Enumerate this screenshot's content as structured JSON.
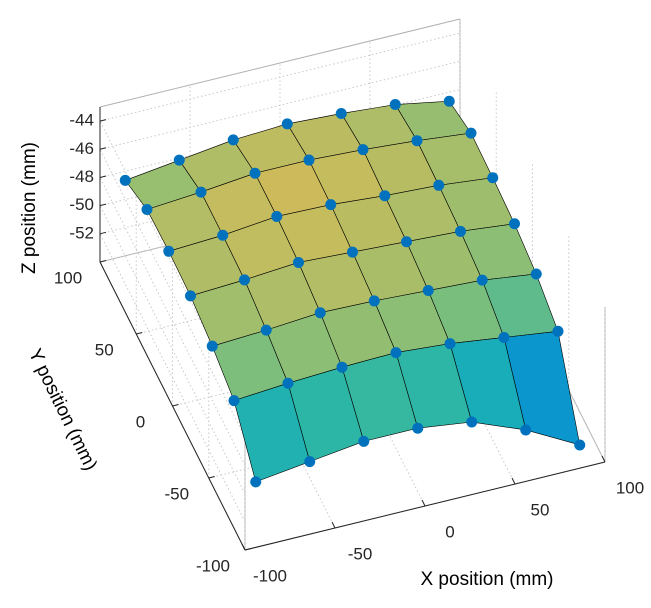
{
  "chart_data": {
    "type": "surface3d",
    "xlabel": "X position (mm)",
    "ylabel": "Y position (mm)",
    "zlabel": "Z position (mm)",
    "x": [
      -90,
      -60,
      -30,
      0,
      30,
      60,
      90
    ],
    "y": [
      -90,
      -60,
      -30,
      0,
      30,
      60,
      90
    ],
    "z": [
      [
        -50.5,
        -50,
        -49.5,
        -49.5,
        -50,
        -51.5,
        -53.5
      ],
      [
        -47.8,
        -47.5,
        -47.3,
        -47.2,
        -47.5,
        -48,
        -48.5
      ],
      [
        -47,
        -46.8,
        -46.5,
        -46.6,
        -46.8,
        -47,
        -47.5
      ],
      [
        -46.5,
        -46.3,
        -46,
        -46.2,
        -46.4,
        -46.6,
        -47
      ],
      [
        -46.4,
        -46.2,
        -45.8,
        -45.9,
        -46.2,
        -46.4,
        -46.8
      ],
      [
        -46.5,
        -46.2,
        -45.8,
        -45.8,
        -46,
        -46.3,
        -46.7
      ],
      [
        -47.5,
        -47,
        -46.5,
        -46.3,
        -46.5,
        -46.8,
        -47.5
      ]
    ],
    "marker_color": "#0072bd",
    "edge_color": "#000000",
    "colormap": [
      "#352a87",
      "#0f5cdd",
      "#1481d6",
      "#06a4ca",
      "#2eb7a4",
      "#87bf77",
      "#d1bb59",
      "#fec832",
      "#f9fb0e"
    ],
    "xlim": [
      -100,
      100
    ],
    "ylim": [
      -100,
      100
    ],
    "zlim": [
      -54,
      -43
    ],
    "xticks": [
      -100,
      -50,
      0,
      50,
      100
    ],
    "yticks": [
      -100,
      -50,
      0,
      50,
      100
    ],
    "zticks": [
      -52,
      -50,
      -48,
      -46,
      -44
    ],
    "grid": true
  }
}
